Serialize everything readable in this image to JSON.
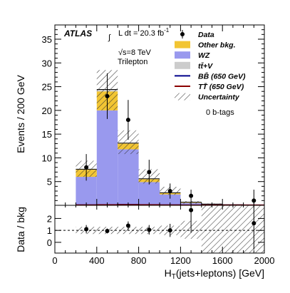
{
  "chart_data": [
    {
      "type": "bar",
      "panel": "main",
      "stacked": true,
      "xlabel": "H_T(jets+leptons) [GeV]",
      "ylabel": "Events / 200 GeV",
      "xlim": [
        0,
        2000
      ],
      "ylim": [
        0,
        38
      ],
      "x_ticks": [
        0,
        400,
        800,
        1200,
        1600,
        2000
      ],
      "y_ticks": [
        5,
        10,
        15,
        20,
        25,
        30,
        35
      ],
      "bin_edges": [
        200,
        400,
        600,
        800,
        1000,
        1200,
        1400,
        1600,
        1800,
        2000
      ],
      "series": [
        {
          "name": "WZ",
          "color": "#9999ee",
          "values": [
            6.0,
            20.0,
            11.8,
            4.9,
            2.3,
            0.5,
            0.2,
            0.1,
            0.05
          ]
        },
        {
          "name": "Other bkg.",
          "color": "#f2c533",
          "values": [
            1.5,
            4.0,
            1.2,
            0.6,
            0.3,
            0.1,
            0.05,
            0.02,
            0.02
          ]
        },
        {
          "name": "tt̄+V",
          "color": "#cccccc",
          "values": [
            0.1,
            0.4,
            0.1,
            0.1,
            0.05,
            0.05,
            0.02,
            0.01,
            0.01
          ]
        }
      ],
      "uncertainty_band": {
        "name": "Uncertainty",
        "low": [
          6.0,
          20.0,
          10.8,
          4.6,
          2.2,
          0.3,
          0.1,
          0.05,
          0.02
        ],
        "high": [
          9.4,
          28.5,
          15.8,
          7.6,
          3.9,
          0.9,
          0.4,
          0.2,
          0.15
        ]
      },
      "signals": [
        {
          "name": "BB̄ (650 GeV)",
          "color": "#00008b",
          "values": [
            0.05,
            0.1,
            0.15,
            0.1,
            0.05,
            0.02,
            0.01,
            0.01,
            0.01
          ]
        },
        {
          "name": "TT̄ (650 GeV)",
          "color": "#8b0000",
          "values": [
            0.03,
            0.08,
            0.1,
            0.08,
            0.04,
            0.02,
            0.01,
            0.01,
            0.01
          ]
        }
      ],
      "data_points": {
        "name": "Data",
        "x": [
          300,
          500,
          700,
          900,
          1100,
          1300,
          1900
        ],
        "y": [
          8,
          23,
          18,
          7,
          3,
          2,
          1
        ],
        "err_low": [
          2.8,
          4.8,
          4.2,
          2.6,
          1.6,
          1.3,
          0.8
        ],
        "err_high": [
          2.8,
          4.8,
          4.2,
          2.6,
          1.6,
          1.3,
          2.3
        ]
      },
      "legend_position": "top-right",
      "legend": [
        "Data",
        "Other bkg.",
        "WZ",
        "tt̄+V",
        "BB̄ (650 GeV)",
        "TT̄ (650 GeV)",
        "Uncertainty"
      ],
      "annotations": [
        "ATLAS",
        "∫ L dt = 20.3 fb⁻¹",
        "√s=8 TeV",
        "Trilepton",
        "0 b-tags"
      ]
    },
    {
      "type": "scatter",
      "panel": "ratio",
      "xlabel": "H_T(jets+leptons) [GeV]",
      "ylabel": "Data / bkg",
      "xlim": [
        0,
        2000
      ],
      "ylim": [
        -0.9,
        3.1
      ],
      "x_ticks": [
        0,
        400,
        800,
        1200,
        1600,
        2000
      ],
      "y_ticks": [
        0,
        1,
        2
      ],
      "reference_line": 1,
      "bin_edges": [
        200,
        400,
        600,
        800,
        1000,
        1200,
        1400,
        1600,
        1800,
        2000
      ],
      "band_low": [
        0.7,
        0.7,
        0.7,
        0.7,
        0.6,
        0.3,
        -0.9,
        -0.9,
        -0.9
      ],
      "band_high": [
        1.3,
        1.3,
        1.3,
        1.3,
        1.4,
        1.8,
        3.1,
        3.1,
        3.1
      ],
      "points": {
        "x": [
          300,
          500,
          700,
          900,
          1100,
          1300,
          1900
        ],
        "y": [
          1.1,
          0.95,
          1.4,
          1.05,
          1.0,
          2.7,
          1.6
        ],
        "err": [
          0.35,
          0.2,
          0.35,
          0.4,
          0.55,
          1.9,
          2.2
        ]
      }
    }
  ],
  "labels": {
    "atlas": "ATLAS",
    "lumi_prefix": "∫",
    "lumi": "L dt = 20.3 fb",
    "lumi_sup": "-1",
    "energy": "√s=8 TeV",
    "channel": "Trilepton",
    "btag": "0 b-tags",
    "y_main": "Events / 200 GeV",
    "y_ratio": "Data / bkg",
    "x_main": "H",
    "x_sub": "T",
    "x_rest": "(jets+leptons) [GeV]"
  },
  "legend": [
    {
      "key": "data",
      "label": "Data"
    },
    {
      "key": "other",
      "label": "Other bkg.",
      "color": "#f2c533"
    },
    {
      "key": "wz",
      "label": "WZ",
      "color": "#9999ee"
    },
    {
      "key": "ttv",
      "label": "tt̄+V",
      "color": "#cccccc"
    },
    {
      "key": "bb",
      "label": "BB̄ (650 GeV)",
      "color": "#00008b"
    },
    {
      "key": "tt",
      "label": "TT̄ (650 GeV)",
      "color": "#8b0000"
    },
    {
      "key": "unc",
      "label": "Uncertainty"
    }
  ]
}
